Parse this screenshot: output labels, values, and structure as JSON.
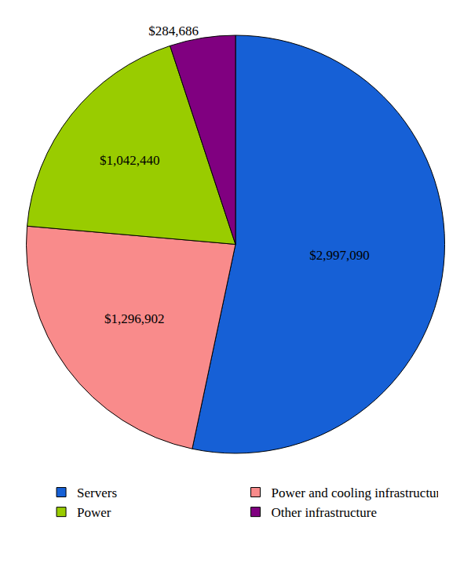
{
  "chart_data": {
    "type": "pie",
    "categories": [
      "Servers",
      "Power and cooling infrastructure",
      "Power",
      "Other infrastructure"
    ],
    "values": [
      2997090,
      1296902,
      1042440,
      284686
    ],
    "value_labels": [
      "$2,997,090",
      "$1,296,902",
      "$1,042,440",
      "$284,686"
    ],
    "colors": [
      "#1660d6",
      "#f98b8b",
      "#99cc00",
      "#800080"
    ],
    "data_labels": true,
    "legend": "bottom"
  }
}
